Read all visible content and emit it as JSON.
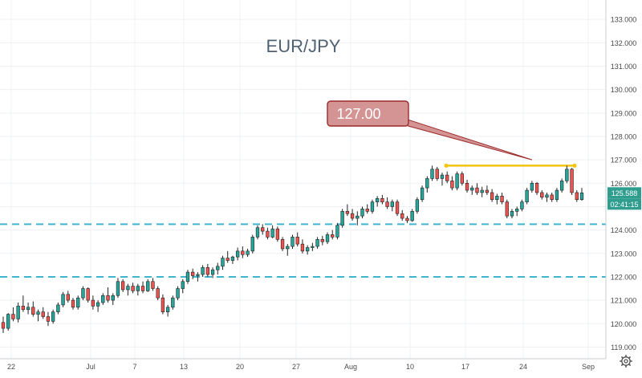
{
  "chart_data": {
    "type": "candlestick",
    "title": "EUR/JPY",
    "y_axis_labels": [
      "119.000",
      "120.000",
      "121.000",
      "122.000",
      "123.000",
      "124.000",
      "125.000",
      "126.000",
      "127.000",
      "128.000",
      "129.000",
      "130.000",
      "131.000",
      "132.000",
      "133.000"
    ],
    "ylim": [
      118.5,
      133.1
    ],
    "x_axis_labels": [
      "22",
      "Jul",
      "7",
      "13",
      "20",
      "27",
      "Aug",
      "10",
      "17",
      "24",
      "Sep"
    ],
    "grid": true,
    "price_label": "125.588",
    "countdown_label": "02:41:15",
    "annotation": {
      "text": "127.00",
      "points_to": 127.0
    },
    "resistance_line": {
      "value": 126.75,
      "color": "#f2c40f"
    },
    "support_lines": [
      {
        "value": 124.25,
        "color": "#3fb5d0"
      },
      {
        "value": 122.0,
        "color": "#3fb5d0"
      }
    ],
    "up_color": "#26a69a",
    "down_color": "#ef5350",
    "candles": [
      [
        120.05,
        120.3,
        119.6,
        119.8
      ],
      [
        119.8,
        120.45,
        119.7,
        120.4
      ],
      [
        120.4,
        120.7,
        120.1,
        120.2
      ],
      [
        120.2,
        120.9,
        120.05,
        120.75
      ],
      [
        120.75,
        121.2,
        120.5,
        120.6
      ],
      [
        120.6,
        120.9,
        120.4,
        120.7
      ],
      [
        120.7,
        120.95,
        120.3,
        120.4
      ],
      [
        120.4,
        120.6,
        120.1,
        120.5
      ],
      [
        120.5,
        120.7,
        120.2,
        120.3
      ],
      [
        120.3,
        120.5,
        119.9,
        120.1
      ],
      [
        120.1,
        120.6,
        120.0,
        120.5
      ],
      [
        120.5,
        120.9,
        120.4,
        120.8
      ],
      [
        120.8,
        121.35,
        120.7,
        121.25
      ],
      [
        121.25,
        121.4,
        120.9,
        121.0
      ],
      [
        121.0,
        121.1,
        120.6,
        120.7
      ],
      [
        120.7,
        121.2,
        120.6,
        121.1
      ],
      [
        121.1,
        121.6,
        121.0,
        121.5
      ],
      [
        121.5,
        121.55,
        120.9,
        121.0
      ],
      [
        121.0,
        121.2,
        120.6,
        120.75
      ],
      [
        120.75,
        121.0,
        120.5,
        120.9
      ],
      [
        120.9,
        121.3,
        120.8,
        121.2
      ],
      [
        121.2,
        121.55,
        120.9,
        121.0
      ],
      [
        121.0,
        121.3,
        120.8,
        121.2
      ],
      [
        121.2,
        121.95,
        121.1,
        121.8
      ],
      [
        121.8,
        121.9,
        121.35,
        121.45
      ],
      [
        121.45,
        121.7,
        121.2,
        121.6
      ],
      [
        121.6,
        121.75,
        121.3,
        121.4
      ],
      [
        121.4,
        121.7,
        121.2,
        121.6
      ],
      [
        121.6,
        121.8,
        121.3,
        121.4
      ],
      [
        121.4,
        121.9,
        121.35,
        121.8
      ],
      [
        121.8,
        121.95,
        121.4,
        121.5
      ],
      [
        121.5,
        121.6,
        121.0,
        121.1
      ],
      [
        121.1,
        121.25,
        120.4,
        120.5
      ],
      [
        120.5,
        120.8,
        120.3,
        120.7
      ],
      [
        120.7,
        121.2,
        120.6,
        121.1
      ],
      [
        121.1,
        121.6,
        121.0,
        121.5
      ],
      [
        121.5,
        121.9,
        121.3,
        121.8
      ],
      [
        121.8,
        122.3,
        121.7,
        122.2
      ],
      [
        122.2,
        122.35,
        121.9,
        122.05
      ],
      [
        122.05,
        122.2,
        121.8,
        122.1
      ],
      [
        122.1,
        122.5,
        122.0,
        122.4
      ],
      [
        122.4,
        122.55,
        122.0,
        122.1
      ],
      [
        122.1,
        122.4,
        121.95,
        122.3
      ],
      [
        122.3,
        122.6,
        122.1,
        122.45
      ],
      [
        122.45,
        122.9,
        122.3,
        122.8
      ],
      [
        122.8,
        123.1,
        122.6,
        122.7
      ],
      [
        122.7,
        122.9,
        122.55,
        122.85
      ],
      [
        122.85,
        123.25,
        122.7,
        123.1
      ],
      [
        123.1,
        123.3,
        122.8,
        122.95
      ],
      [
        122.95,
        123.2,
        122.85,
        123.1
      ],
      [
        123.1,
        123.8,
        123.0,
        123.7
      ],
      [
        123.7,
        124.2,
        123.6,
        124.1
      ],
      [
        124.1,
        124.25,
        123.8,
        123.95
      ],
      [
        123.95,
        124.1,
        123.6,
        123.7
      ],
      [
        123.7,
        124.2,
        123.65,
        124.05
      ],
      [
        124.05,
        124.15,
        123.5,
        123.6
      ],
      [
        123.6,
        123.7,
        123.1,
        123.2
      ],
      [
        123.2,
        123.4,
        122.9,
        123.3
      ],
      [
        123.3,
        123.8,
        123.2,
        123.7
      ],
      [
        123.7,
        123.9,
        123.3,
        123.4
      ],
      [
        123.4,
        123.6,
        123.0,
        123.1
      ],
      [
        123.1,
        123.35,
        122.95,
        123.25
      ],
      [
        123.25,
        123.45,
        123.1,
        123.3
      ],
      [
        123.3,
        123.7,
        123.2,
        123.6
      ],
      [
        123.6,
        123.75,
        123.35,
        123.5
      ],
      [
        123.5,
        123.9,
        123.4,
        123.8
      ],
      [
        123.8,
        124.0,
        123.6,
        123.7
      ],
      [
        123.7,
        124.3,
        123.6,
        124.2
      ],
      [
        124.2,
        124.9,
        124.1,
        124.8
      ],
      [
        124.8,
        125.1,
        124.6,
        124.7
      ],
      [
        124.7,
        124.9,
        124.4,
        124.5
      ],
      [
        124.5,
        124.8,
        124.2,
        124.6
      ],
      [
        124.6,
        125.0,
        124.5,
        124.9
      ],
      [
        124.9,
        125.1,
        124.7,
        124.8
      ],
      [
        124.8,
        125.3,
        124.7,
        125.2
      ],
      [
        125.2,
        125.45,
        125.0,
        125.35
      ],
      [
        125.35,
        125.5,
        125.1,
        125.2
      ],
      [
        125.2,
        125.4,
        124.9,
        125.0
      ],
      [
        125.0,
        125.3,
        124.8,
        125.2
      ],
      [
        125.2,
        125.3,
        124.6,
        124.7
      ],
      [
        124.7,
        124.85,
        124.4,
        124.5
      ],
      [
        124.5,
        124.6,
        124.3,
        124.4
      ],
      [
        124.4,
        124.9,
        124.35,
        124.8
      ],
      [
        124.8,
        125.4,
        124.7,
        125.3
      ],
      [
        125.3,
        125.9,
        125.2,
        125.8
      ],
      [
        125.8,
        126.3,
        125.6,
        126.2
      ],
      [
        126.2,
        126.75,
        126.1,
        126.6
      ],
      [
        126.6,
        126.7,
        126.1,
        126.2
      ],
      [
        126.2,
        126.45,
        125.9,
        126.35
      ],
      [
        126.35,
        126.5,
        126.0,
        126.1
      ],
      [
        126.1,
        126.3,
        125.7,
        125.8
      ],
      [
        125.8,
        126.5,
        125.7,
        126.4
      ],
      [
        126.4,
        126.5,
        125.9,
        126.0
      ],
      [
        126.0,
        126.15,
        125.6,
        125.7
      ],
      [
        125.7,
        125.9,
        125.5,
        125.8
      ],
      [
        125.8,
        126.0,
        125.5,
        125.6
      ],
      [
        125.6,
        125.85,
        125.4,
        125.7
      ],
      [
        125.7,
        125.9,
        125.5,
        125.6
      ],
      [
        125.6,
        125.75,
        125.2,
        125.3
      ],
      [
        125.3,
        125.55,
        125.1,
        125.45
      ],
      [
        125.45,
        125.6,
        125.1,
        125.2
      ],
      [
        125.2,
        125.3,
        124.5,
        124.6
      ],
      [
        124.6,
        124.9,
        124.5,
        124.8
      ],
      [
        124.8,
        125.0,
        124.6,
        124.9
      ],
      [
        124.9,
        125.3,
        124.8,
        125.2
      ],
      [
        125.2,
        125.8,
        125.1,
        125.7
      ],
      [
        125.7,
        126.1,
        125.6,
        126.0
      ],
      [
        126.0,
        126.05,
        125.5,
        125.6
      ],
      [
        125.6,
        125.7,
        125.3,
        125.4
      ],
      [
        125.4,
        125.6,
        125.2,
        125.5
      ],
      [
        125.5,
        125.6,
        125.2,
        125.3
      ],
      [
        125.3,
        125.8,
        125.2,
        125.7
      ],
      [
        125.7,
        126.2,
        125.6,
        126.1
      ],
      [
        126.1,
        126.75,
        126.0,
        126.6
      ],
      [
        126.6,
        126.65,
        125.5,
        125.6
      ],
      [
        125.6,
        125.7,
        125.2,
        125.3
      ],
      [
        125.3,
        125.8,
        125.25,
        125.588
      ]
    ]
  }
}
